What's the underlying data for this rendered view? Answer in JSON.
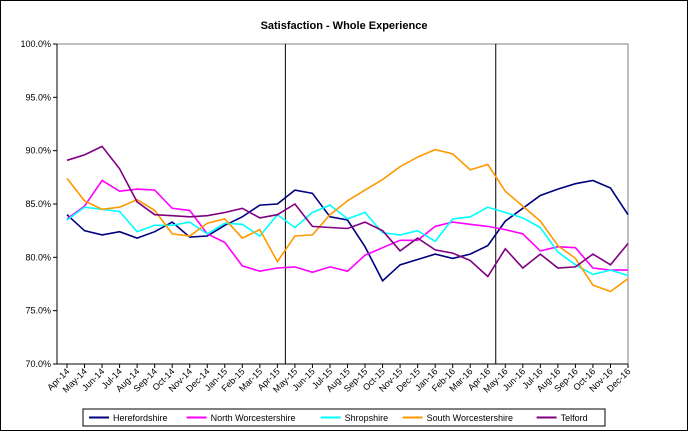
{
  "chart_data": {
    "type": "line",
    "title": "Satisfaction - Whole Experience",
    "categories": [
      "Apr-14",
      "May-14",
      "Jun-14",
      "Jul-14",
      "Aug-14",
      "Sep-14",
      "Oct-14",
      "Nov-14",
      "Dec-14",
      "Jan-15",
      "Feb-15",
      "Mar-15",
      "Apr-15",
      "May-15",
      "Jun-15",
      "Jul-15",
      "Aug-15",
      "Sep-15",
      "Oct-15",
      "Nov-15",
      "Dec-15",
      "Jan-16",
      "Feb-16",
      "Mar-16",
      "Apr-16",
      "May-16",
      "Jun-16",
      "Jul-16",
      "Aug-16",
      "Sep-16",
      "Oct-16",
      "Nov-16",
      "Dec-16"
    ],
    "series": [
      {
        "name": "Herefordshire",
        "color": "#000080",
        "values": [
          84.0,
          82.5,
          82.1,
          82.4,
          81.8,
          82.4,
          83.3,
          81.9,
          82.0,
          83.0,
          83.8,
          84.9,
          85.0,
          86.3,
          86.0,
          83.8,
          83.5,
          81.0,
          77.8,
          79.3,
          79.8,
          80.3,
          79.9,
          80.3,
          81.1,
          83.4,
          84.6,
          85.8,
          86.4,
          86.9,
          87.2,
          86.5,
          84.0
        ]
      },
      {
        "name": "North Worcestershire",
        "color": "#ff00ff",
        "values": [
          83.6,
          84.8,
          87.2,
          86.2,
          86.4,
          86.3,
          84.6,
          84.4,
          82.2,
          81.4,
          79.2,
          78.7,
          79.0,
          79.1,
          78.6,
          79.1,
          78.7,
          80.2,
          80.9,
          81.6,
          81.6,
          82.9,
          83.3,
          83.1,
          82.9,
          82.6,
          82.2,
          80.6,
          81.0,
          80.9,
          79.0,
          78.8,
          78.8
        ]
      },
      {
        "name": "Shropshire",
        "color": "#00ffff",
        "values": [
          83.5,
          84.7,
          84.5,
          84.3,
          82.4,
          83.0,
          83.0,
          83.3,
          82.2,
          83.2,
          83.1,
          82.0,
          84.0,
          82.8,
          84.2,
          84.9,
          83.6,
          84.2,
          82.3,
          82.1,
          82.5,
          81.5,
          83.6,
          83.8,
          84.7,
          84.2,
          83.7,
          82.8,
          80.5,
          79.3,
          78.4,
          78.8,
          78.3
        ]
      },
      {
        "name": "South Worcestershire",
        "color": "#ff9900",
        "values": [
          87.4,
          85.3,
          84.5,
          84.7,
          85.4,
          84.4,
          82.2,
          82.0,
          83.2,
          83.6,
          81.8,
          82.6,
          79.6,
          82.0,
          82.1,
          84.0,
          85.3,
          86.3,
          87.3,
          88.5,
          89.4,
          90.1,
          89.7,
          88.2,
          88.7,
          86.2,
          84.8,
          83.4,
          81.1,
          79.9,
          77.4,
          76.8,
          78.0
        ]
      },
      {
        "name": "Telford",
        "color": "#800080",
        "values": [
          89.1,
          89.6,
          90.4,
          88.3,
          85.2,
          84.0,
          83.9,
          83.8,
          83.9,
          84.2,
          84.6,
          83.7,
          84.0,
          85.0,
          82.9,
          82.8,
          82.7,
          83.3,
          82.5,
          80.6,
          81.8,
          80.7,
          80.4,
          79.7,
          78.2,
          80.8,
          79.0,
          80.3,
          79.0,
          79.1,
          80.3,
          79.3,
          81.3
        ]
      }
    ],
    "ylim": [
      70,
      100
    ],
    "yticks": [
      {
        "value": 70,
        "label": "70.0%"
      },
      {
        "value": 75,
        "label": "75.0%"
      },
      {
        "value": 80,
        "label": "80.0%"
      },
      {
        "value": 85,
        "label": "85.0%"
      },
      {
        "value": 90,
        "label": "90.0%"
      },
      {
        "value": 95,
        "label": "95.0%"
      },
      {
        "value": 100,
        "label": "100.0%"
      }
    ],
    "vlines": [
      "Apr-15",
      "Apr-16"
    ],
    "legend": "bottom"
  }
}
